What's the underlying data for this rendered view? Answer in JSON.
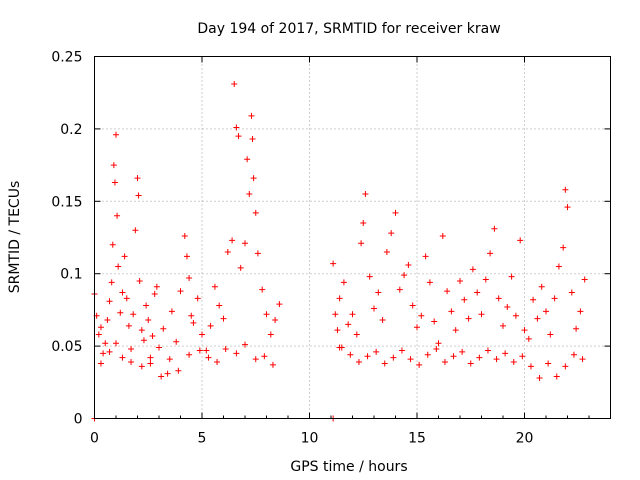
{
  "chart_data": {
    "type": "scatter",
    "title": "Day 194 of 2017, SRMTID for receiver kraw",
    "xlabel": "GPS time / hours",
    "ylabel": "SRMTID / TECUs",
    "xlim": [
      0,
      24
    ],
    "ylim": [
      0,
      0.25
    ],
    "xticks": [
      0,
      5,
      10,
      15,
      20
    ],
    "xtick_labels": [
      "0",
      "5",
      "10",
      "15",
      "20"
    ],
    "yticks": [
      0,
      0.05,
      0.1,
      0.15,
      0.2,
      0.25
    ],
    "ytick_labels": [
      "0",
      "0.05",
      "0.1",
      "0.15",
      "0.2",
      "0.25"
    ],
    "grid": true,
    "marker": "plus",
    "color": "#ff0000",
    "series": [
      {
        "name": "SRMTID",
        "x": [
          0.0,
          0.1,
          0.2,
          0.3,
          0.4,
          0.5,
          0.6,
          0.7,
          0.8,
          0.85,
          0.9,
          0.95,
          1.0,
          1.05,
          1.1,
          1.2,
          1.3,
          1.4,
          1.5,
          1.6,
          1.7,
          1.8,
          1.9,
          2.0,
          2.05,
          2.1,
          2.2,
          2.3,
          2.4,
          2.5,
          2.6,
          2.7,
          2.8,
          2.9,
          3.0,
          3.2,
          3.4,
          3.6,
          3.8,
          4.0,
          4.2,
          4.3,
          4.4,
          4.5,
          4.6,
          4.8,
          5.0,
          5.2,
          5.4,
          5.6,
          5.8,
          6.0,
          6.2,
          6.4,
          6.5,
          6.6,
          6.7,
          6.8,
          7.0,
          7.1,
          7.2,
          7.3,
          7.35,
          7.4,
          7.5,
          7.6,
          7.8,
          8.0,
          8.2,
          8.4,
          8.6,
          11.1,
          11.2,
          11.3,
          11.4,
          11.5,
          11.6,
          11.8,
          12.0,
          12.2,
          12.4,
          12.5,
          12.6,
          12.8,
          13.0,
          13.2,
          13.4,
          13.6,
          13.8,
          14.0,
          14.2,
          14.4,
          14.6,
          14.8,
          15.0,
          15.2,
          15.4,
          15.6,
          15.8,
          16.0,
          16.2,
          16.4,
          16.6,
          16.8,
          17.0,
          17.2,
          17.4,
          17.6,
          17.8,
          18.0,
          18.2,
          18.4,
          18.6,
          18.8,
          19.0,
          19.2,
          19.4,
          19.6,
          19.8,
          20.0,
          20.2,
          20.4,
          20.6,
          20.8,
          21.0,
          21.2,
          21.4,
          21.6,
          21.8,
          21.9,
          22.0,
          22.2,
          22.4,
          22.6,
          22.8,
          0.3,
          0.7,
          1.0,
          1.3,
          1.7,
          2.2,
          2.6,
          3.1,
          3.5,
          3.9,
          4.4,
          4.9,
          5.3,
          5.7,
          6.1,
          6.6,
          7.0,
          7.5,
          7.9,
          8.3,
          11.4,
          11.9,
          12.3,
          12.7,
          13.1,
          13.5,
          13.9,
          14.3,
          14.7,
          15.1,
          15.5,
          15.9,
          16.3,
          16.7,
          17.1,
          17.5,
          17.9,
          18.3,
          18.7,
          19.1,
          19.5,
          19.9,
          20.3,
          20.7,
          21.1,
          21.5,
          21.9,
          22.3,
          22.7,
          0.0,
          11.1
        ],
        "y": [
          0.086,
          0.071,
          0.058,
          0.063,
          0.045,
          0.052,
          0.068,
          0.081,
          0.094,
          0.12,
          0.175,
          0.163,
          0.196,
          0.14,
          0.105,
          0.073,
          0.087,
          0.112,
          0.083,
          0.064,
          0.048,
          0.072,
          0.13,
          0.166,
          0.154,
          0.095,
          0.061,
          0.054,
          0.078,
          0.068,
          0.042,
          0.057,
          0.086,
          0.091,
          0.049,
          0.062,
          0.031,
          0.074,
          0.053,
          0.088,
          0.126,
          0.112,
          0.097,
          0.071,
          0.066,
          0.083,
          0.058,
          0.047,
          0.064,
          0.091,
          0.078,
          0.069,
          0.115,
          0.123,
          0.231,
          0.201,
          0.195,
          0.104,
          0.121,
          0.179,
          0.155,
          0.209,
          0.193,
          0.166,
          0.142,
          0.114,
          0.089,
          0.072,
          0.058,
          0.068,
          0.079,
          0.107,
          0.072,
          0.061,
          0.083,
          0.049,
          0.094,
          0.065,
          0.072,
          0.058,
          0.121,
          0.135,
          0.155,
          0.098,
          0.076,
          0.087,
          0.068,
          0.115,
          0.128,
          0.142,
          0.089,
          0.099,
          0.106,
          0.078,
          0.063,
          0.071,
          0.112,
          0.094,
          0.067,
          0.052,
          0.126,
          0.088,
          0.074,
          0.061,
          0.095,
          0.082,
          0.069,
          0.103,
          0.087,
          0.072,
          0.096,
          0.114,
          0.131,
          0.083,
          0.064,
          0.077,
          0.098,
          0.071,
          0.123,
          0.061,
          0.055,
          0.082,
          0.069,
          0.091,
          0.074,
          0.058,
          0.083,
          0.105,
          0.118,
          0.158,
          0.146,
          0.087,
          0.062,
          0.074,
          0.096,
          0.038,
          0.046,
          0.052,
          0.042,
          0.039,
          0.036,
          0.038,
          0.029,
          0.041,
          0.033,
          0.044,
          0.047,
          0.042,
          0.039,
          0.048,
          0.045,
          0.051,
          0.041,
          0.043,
          0.037,
          0.049,
          0.044,
          0.039,
          0.043,
          0.046,
          0.038,
          0.042,
          0.047,
          0.041,
          0.037,
          0.044,
          0.048,
          0.039,
          0.043,
          0.046,
          0.038,
          0.042,
          0.047,
          0.041,
          0.045,
          0.039,
          0.043,
          0.036,
          0.028,
          0.038,
          0.029,
          0.036,
          0.044,
          0.041,
          0.0,
          0.0
        ]
      }
    ]
  }
}
